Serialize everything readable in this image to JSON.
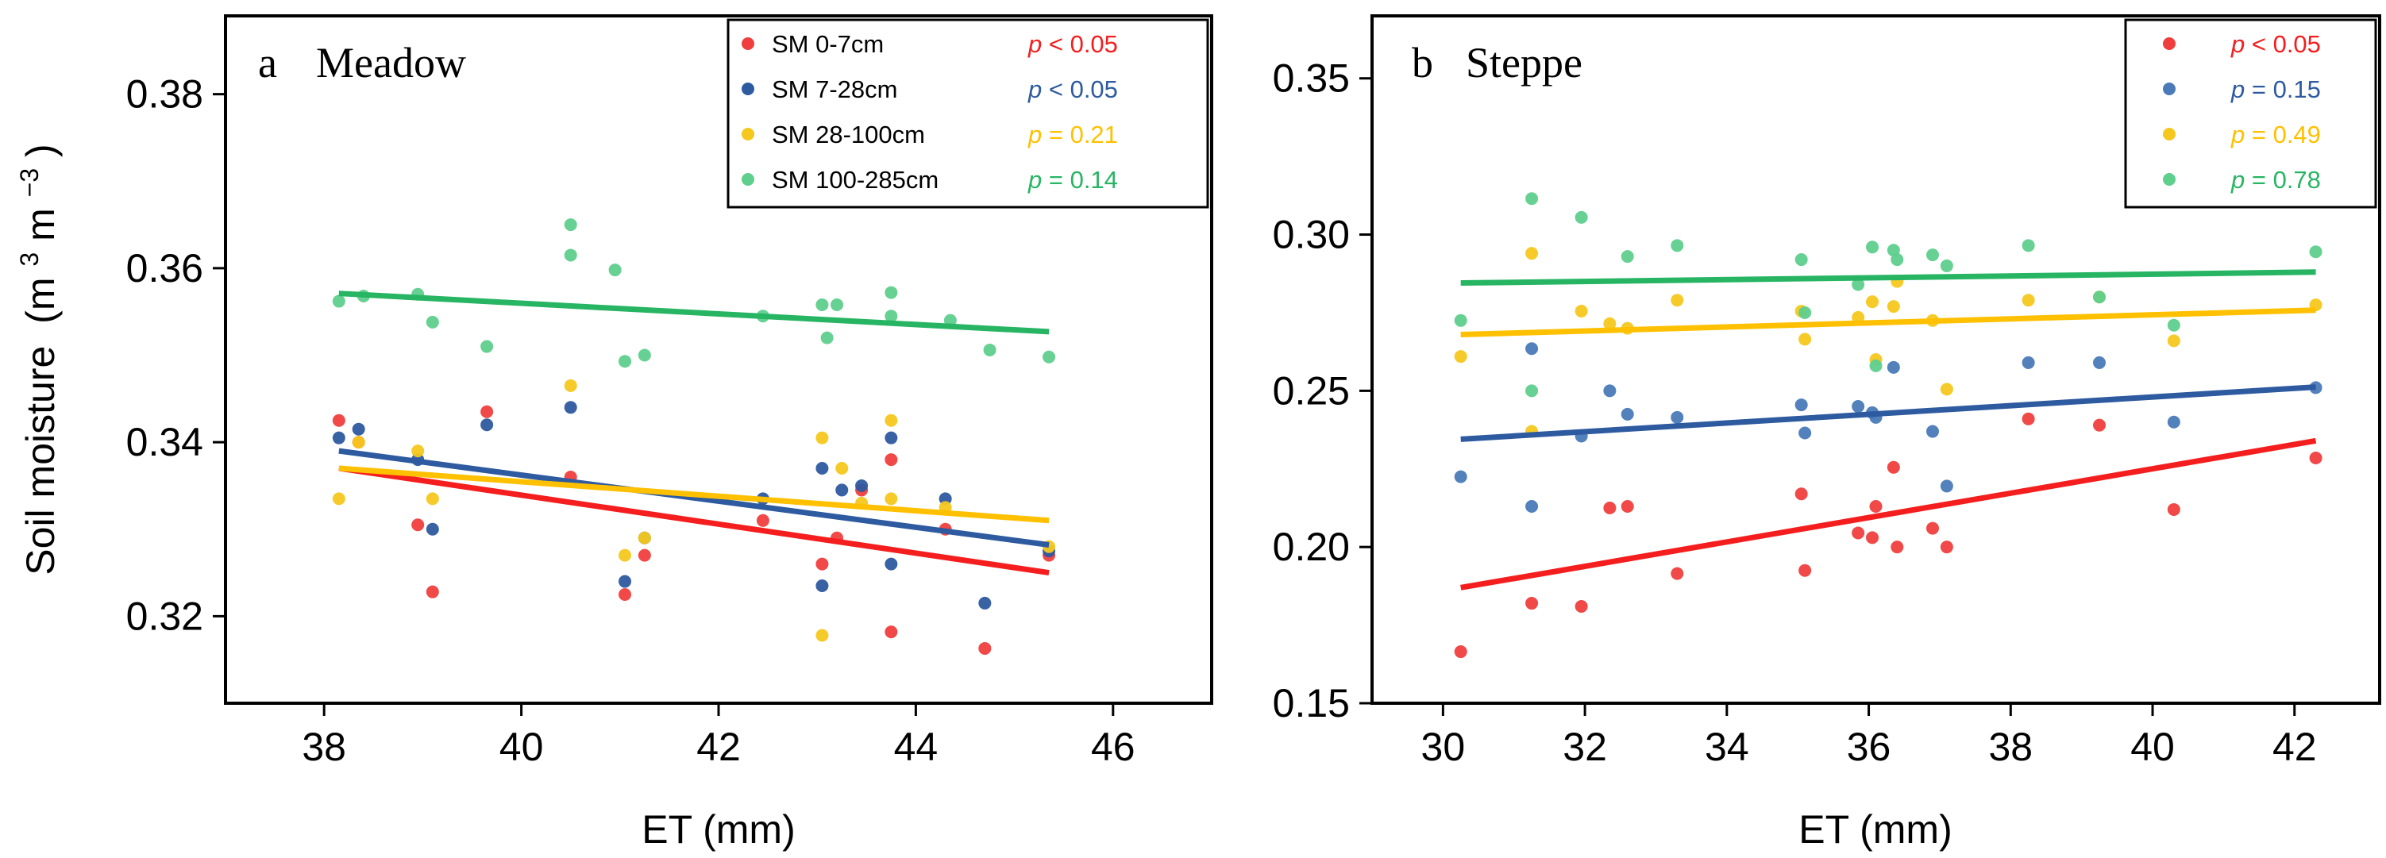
{
  "chart_data": [
    {
      "type": "scatter",
      "panel_letter": "a",
      "title": "Meadow",
      "xlabel": "ET (mm)",
      "ylabel": "Soil moisture",
      "ylabel_unit": "(m3m−3)",
      "ylabel_unit_parts": [
        "(m",
        "3",
        "m",
        "−3",
        ")"
      ],
      "xlim": [
        37,
        47
      ],
      "ylim": [
        0.31,
        0.389
      ],
      "xticks": [
        38,
        40,
        42,
        44,
        46
      ],
      "xtick_labels": [
        "38",
        "40",
        "42",
        "44",
        "46"
      ],
      "yticks": [
        0.32,
        0.34,
        0.36,
        0.38
      ],
      "ytick_labels": [
        "0.32",
        "0.34",
        "0.36",
        "0.38"
      ],
      "legend_position": "top-right",
      "series": [
        {
          "name": "SM 0-7cm",
          "p_text": "p < 0.05",
          "p_italic": "p",
          "p_rest": " < 0.05",
          "color": "#f03e3e",
          "line_color": "#f51e1e",
          "x": [
            38.15,
            38.35,
            38.95,
            39.1,
            39.65,
            40.5,
            41.05,
            41.25,
            42.45,
            43.05,
            43.2,
            43.45,
            43.75,
            43.75,
            44.3,
            44.7,
            45.35
          ],
          "y": [
            0.3425,
            0.34,
            0.3305,
            0.3228,
            0.3435,
            0.336,
            0.3225,
            0.327,
            0.331,
            0.326,
            0.329,
            0.3345,
            0.3182,
            0.338,
            0.33,
            0.3163,
            0.327
          ],
          "fit": [
            [
              38.15,
              0.337
            ],
            [
              45.35,
              0.325
            ]
          ]
        },
        {
          "name": "SM 7-28cm",
          "p_text": "p < 0.05",
          "p_italic": "p",
          "p_rest": " < 0.05",
          "color": "#2e5aa0",
          "line_color": "#2e5aa0",
          "x": [
            38.15,
            38.35,
            38.95,
            39.1,
            39.65,
            40.5,
            41.05,
            41.25,
            42.45,
            43.05,
            43.05,
            43.25,
            43.45,
            43.75,
            43.75,
            44.3,
            44.7,
            45.35
          ],
          "y": [
            0.3405,
            0.3415,
            0.338,
            0.33,
            0.342,
            0.344,
            0.324,
            0.329,
            0.3335,
            0.337,
            0.3235,
            0.3345,
            0.335,
            0.326,
            0.3405,
            0.3335,
            0.3215,
            0.3275
          ],
          "fit": [
            [
              38.15,
              0.339
            ],
            [
              45.35,
              0.3282
            ]
          ]
        },
        {
          "name": "SM 28-100cm",
          "p_text": "p = 0.21",
          "p_italic": "p",
          "p_rest": " = 0.21",
          "color": "#f5c81e",
          "line_color": "#ffc000",
          "x": [
            38.15,
            38.35,
            38.95,
            39.1,
            40.5,
            41.05,
            41.25,
            43.05,
            43.05,
            43.25,
            43.45,
            43.75,
            43.75,
            44.3,
            45.35
          ],
          "y": [
            0.3335,
            0.34,
            0.339,
            0.3335,
            0.3465,
            0.327,
            0.329,
            0.3405,
            0.3178,
            0.337,
            0.333,
            0.3335,
            0.3425,
            0.3325,
            0.328
          ],
          "fit": [
            [
              38.15,
              0.337
            ],
            [
              45.35,
              0.331
            ]
          ]
        },
        {
          "name": "SM 100-285cm",
          "p_text": "p = 0.14",
          "p_italic": "p",
          "p_rest": " = 0.14",
          "color": "#5ecf8c",
          "line_color": "#27b563",
          "x": [
            38.15,
            38.4,
            38.95,
            39.1,
            39.65,
            40.5,
            40.5,
            40.95,
            41.05,
            41.25,
            42.45,
            43.05,
            43.1,
            43.2,
            43.75,
            43.75,
            44.35,
            44.75,
            45.35
          ],
          "y": [
            0.3562,
            0.3568,
            0.357,
            0.3538,
            0.351,
            0.365,
            0.3615,
            0.3598,
            0.3493,
            0.35,
            0.3545,
            0.3558,
            0.352,
            0.3558,
            0.3572,
            0.3545,
            0.354,
            0.3506,
            0.3498
          ],
          "fit": [
            [
              38.15,
              0.3571
            ],
            [
              45.35,
              0.3527
            ]
          ]
        }
      ]
    },
    {
      "type": "scatter",
      "panel_letter": "b",
      "title": "Steppe",
      "xlabel": "ET (mm)",
      "ylabel": "",
      "xlim": [
        29,
        43.2
      ],
      "ylim": [
        0.15,
        0.37
      ],
      "xticks": [
        30,
        32,
        34,
        36,
        38,
        40,
        42
      ],
      "xtick_labels": [
        "30",
        "32",
        "34",
        "36",
        "38",
        "40",
        "42"
      ],
      "yticks": [
        0.15,
        0.2,
        0.25,
        0.3,
        0.35
      ],
      "ytick_labels": [
        "0.15",
        "0.20",
        "0.25",
        "0.30",
        "0.35"
      ],
      "legend_position": "top-right",
      "series": [
        {
          "name": "",
          "p_text": "p < 0.05",
          "p_italic": "p",
          "p_rest": " < 0.05",
          "color": "#f03e3e",
          "line_color": "#f51e1e",
          "x": [
            30.25,
            31.25,
            31.95,
            32.35,
            32.6,
            33.3,
            35.05,
            35.1,
            35.85,
            36.05,
            36.1,
            36.35,
            36.4,
            36.9,
            37.1,
            38.25,
            39.25,
            40.3,
            42.3
          ],
          "y": [
            0.1665,
            0.182,
            0.181,
            0.2125,
            0.213,
            0.1915,
            0.217,
            0.1925,
            0.2045,
            0.203,
            0.213,
            0.2255,
            0.2,
            0.206,
            0.2,
            0.241,
            0.239,
            0.212,
            0.2285
          ],
          "fit": [
            [
              30.25,
              0.187
            ],
            [
              42.3,
              0.234
            ]
          ]
        },
        {
          "name": "",
          "p_text": "p = 0.15",
          "p_italic": "p",
          "p_rest": " = 0.15",
          "color": "#4a7ab8",
          "line_color": "#2e5aa0",
          "x": [
            30.25,
            31.25,
            31.25,
            31.95,
            32.35,
            32.6,
            33.3,
            35.05,
            35.1,
            35.85,
            36.05,
            36.1,
            36.35,
            36.9,
            37.1,
            38.25,
            39.25,
            40.3,
            42.3
          ],
          "y": [
            0.2225,
            0.2635,
            0.213,
            0.2355,
            0.25,
            0.2425,
            0.2415,
            0.2455,
            0.2365,
            0.245,
            0.243,
            0.2415,
            0.2575,
            0.237,
            0.2195,
            0.259,
            0.259,
            0.24,
            0.251
          ],
          "fit": [
            [
              30.25,
              0.2345
            ],
            [
              42.3,
              0.2512
            ]
          ]
        },
        {
          "name": "",
          "p_text": "p = 0.49",
          "p_italic": "p",
          "p_rest": " = 0.49",
          "color": "#f5c81e",
          "line_color": "#ffc000",
          "x": [
            30.25,
            31.25,
            31.25,
            31.95,
            32.35,
            32.6,
            33.3,
            35.05,
            35.1,
            35.85,
            36.05,
            36.1,
            36.35,
            36.4,
            36.9,
            37.1,
            38.25,
            39.25,
            40.3,
            42.3
          ],
          "y": [
            0.261,
            0.294,
            0.237,
            0.2755,
            0.2715,
            0.27,
            0.279,
            0.2755,
            0.2665,
            0.2735,
            0.2785,
            0.26,
            0.277,
            0.285,
            0.2725,
            0.2505,
            0.279,
            0.28,
            0.266,
            0.2775
          ],
          "fit": [
            [
              30.25,
              0.268
            ],
            [
              42.3,
              0.2758
            ]
          ]
        },
        {
          "name": "",
          "p_text": "p = 0.78",
          "p_italic": "p",
          "p_rest": " = 0.78",
          "color": "#5ecf8c",
          "line_color": "#27b563",
          "x": [
            30.25,
            31.25,
            31.25,
            31.95,
            32.6,
            33.3,
            35.05,
            35.1,
            35.85,
            36.05,
            36.1,
            36.35,
            36.4,
            36.9,
            37.1,
            38.25,
            39.25,
            40.3,
            42.3
          ],
          "y": [
            0.2725,
            0.3115,
            0.25,
            0.3055,
            0.293,
            0.2965,
            0.292,
            0.275,
            0.284,
            0.296,
            0.258,
            0.295,
            0.292,
            0.2935,
            0.29,
            0.2965,
            0.28,
            0.271,
            0.2945
          ],
          "fit": [
            [
              30.25,
              0.2845
            ],
            [
              42.3,
              0.288
            ]
          ]
        }
      ]
    }
  ]
}
